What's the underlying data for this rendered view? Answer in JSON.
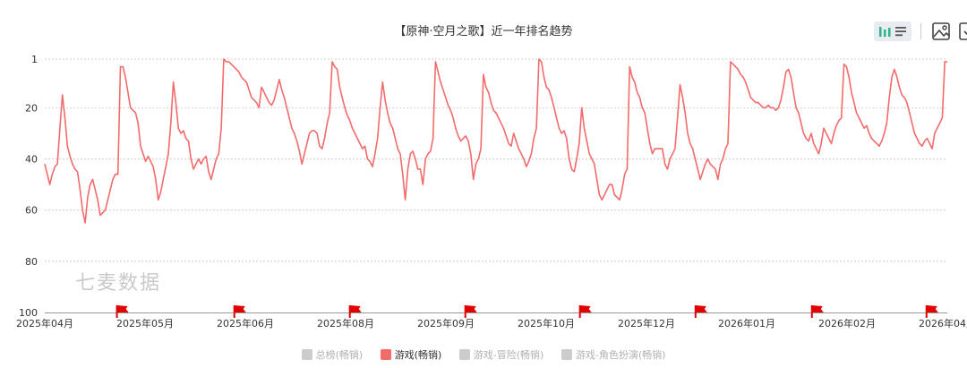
{
  "header": {
    "title": "【原神·空月之歌】近一年排名趋势"
  },
  "toolbar": {
    "bar_icon": "bar-chart-icon",
    "list_icon": "list-icon",
    "image_icon": "image-icon",
    "download_icon": "download-icon"
  },
  "watermark": "七麦数据",
  "legend": [
    {
      "label": "总榜(畅销)",
      "active": false
    },
    {
      "label": "游戏(畅销)",
      "active": true
    },
    {
      "label": "游戏-冒险(畅销)",
      "active": false
    },
    {
      "label": "游戏-角色扮演(畅销)",
      "active": false
    }
  ],
  "colors": {
    "line": "#f26b6b",
    "flag": "#e00000",
    "grid": "#cfcfcf",
    "inactive": "#cccccc",
    "toggle_accent": "#2bb58a"
  },
  "chart_data": {
    "type": "line",
    "title": "【原神·空月之歌】近一年排名趋势",
    "ylim": [
      100,
      1
    ],
    "y_inverted": true,
    "yticks": [
      "1",
      "20",
      "40",
      "60",
      "80",
      "100"
    ],
    "xticks": [
      "2025年04月",
      "2025年05月",
      "2025年06月",
      "2025年08月",
      "2025年09月",
      "2025年10月",
      "2025年12月",
      "2026年01月",
      "2026年02月",
      "2026年04月"
    ],
    "grid": true,
    "series": [
      {
        "name": "游戏(畅销)",
        "values": [
          42,
          46,
          50,
          46,
          43,
          42,
          28,
          15,
          24,
          35,
          39,
          42,
          44,
          45,
          52,
          60,
          65,
          55,
          50,
          48,
          52,
          56,
          62,
          61,
          60,
          56,
          52,
          48,
          46,
          46,
          4,
          4,
          8,
          14,
          20,
          21,
          22,
          26,
          35,
          38,
          41,
          39,
          41,
          43,
          48,
          56,
          53,
          48,
          43,
          38,
          26,
          10,
          18,
          28,
          30,
          29,
          32,
          33,
          40,
          44,
          42,
          40,
          42,
          40,
          39,
          45,
          48,
          44,
          40,
          38,
          28,
          1,
          2,
          2,
          3,
          4,
          5,
          6,
          8,
          9,
          10,
          13,
          16,
          17,
          18,
          20,
          12,
          14,
          16,
          18,
          19,
          17,
          13,
          9,
          13,
          16,
          20,
          24,
          28,
          30,
          33,
          37,
          42,
          38,
          34,
          30,
          29,
          29,
          30,
          35,
          36,
          32,
          26,
          22,
          2,
          4,
          5,
          12,
          16,
          20,
          23,
          25,
          28,
          30,
          32,
          34,
          36,
          35,
          40,
          41,
          43,
          38,
          32,
          20,
          10,
          17,
          22,
          26,
          28,
          32,
          36,
          38,
          46,
          56,
          44,
          38,
          37,
          40,
          44,
          44,
          50,
          40,
          38,
          37,
          32,
          2,
          6,
          10,
          13,
          16,
          19,
          21,
          24,
          28,
          31,
          33,
          32,
          31,
          33,
          38,
          48,
          42,
          40,
          36,
          7,
          12,
          14,
          18,
          21,
          22,
          24,
          26,
          28,
          31,
          34,
          35,
          30,
          33,
          36,
          38,
          40,
          43,
          41,
          38,
          32,
          28,
          1,
          2,
          8,
          12,
          13,
          16,
          20,
          24,
          28,
          30,
          29,
          32,
          40,
          44,
          45,
          40,
          34,
          20,
          28,
          33,
          38,
          40,
          42,
          48,
          54,
          56,
          54,
          52,
          50,
          50,
          54,
          55,
          56,
          52,
          46,
          44,
          4,
          8,
          10,
          14,
          16,
          20,
          22,
          28,
          34,
          38,
          36,
          36,
          36,
          36,
          42,
          44,
          40,
          38,
          36,
          24,
          11,
          16,
          22,
          30,
          34,
          36,
          40,
          44,
          48,
          45,
          42,
          40,
          42,
          43,
          44,
          48,
          42,
          40,
          36,
          34,
          2,
          3,
          4,
          5,
          7,
          8,
          10,
          13,
          16,
          17,
          18,
          18,
          19,
          20,
          20,
          19,
          20,
          20,
          21,
          20,
          17,
          12,
          6,
          5,
          8,
          14,
          20,
          22,
          26,
          30,
          32,
          33,
          30,
          34,
          36,
          38,
          34,
          28,
          30,
          32,
          34,
          30,
          27,
          25,
          24,
          3,
          4,
          8,
          14,
          18,
          22,
          24,
          26,
          28,
          27,
          30,
          32,
          33,
          34,
          35,
          33,
          30,
          26,
          16,
          8,
          5,
          8,
          12,
          15,
          16,
          18,
          22,
          26,
          30,
          32,
          34,
          35,
          33,
          32,
          34,
          36,
          30,
          28,
          26,
          24,
          2,
          2
        ]
      }
    ],
    "flags": [
      0.08,
      0.21,
      0.338,
      0.466,
      0.593,
      0.721,
      0.85,
      0.977
    ],
    "ytick_values": [
      1,
      20,
      40,
      60,
      80,
      100
    ]
  }
}
